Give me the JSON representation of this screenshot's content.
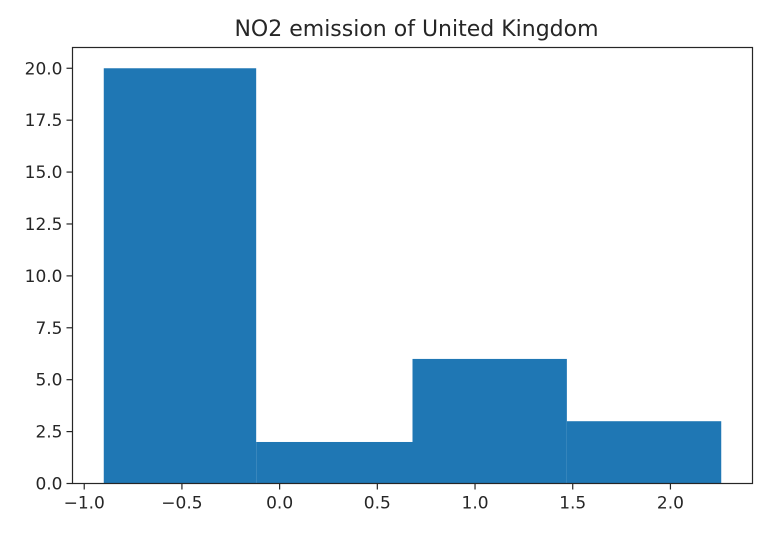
{
  "chart_data": {
    "type": "bar",
    "title": "NO2 emission of United Kingdom",
    "xlabel": "",
    "ylabel": "",
    "bins": [
      {
        "x0": -0.9,
        "x1": -0.12,
        "count": 20
      },
      {
        "x0": -0.12,
        "x1": 0.68,
        "count": 2
      },
      {
        "x0": 0.68,
        "x1": 1.47,
        "count": 6
      },
      {
        "x0": 1.47,
        "x1": 2.26,
        "count": 3
      }
    ],
    "xlim": [
      -1.06,
      2.42
    ],
    "ylim": [
      0,
      21
    ],
    "x_ticks": [
      {
        "value": -1.0,
        "label": "−1.0"
      },
      {
        "value": -0.5,
        "label": "−0.5"
      },
      {
        "value": 0.0,
        "label": "0.0"
      },
      {
        "value": 0.5,
        "label": "0.5"
      },
      {
        "value": 1.0,
        "label": "1.0"
      },
      {
        "value": 1.5,
        "label": "1.5"
      },
      {
        "value": 2.0,
        "label": "2.0"
      }
    ],
    "y_ticks": [
      {
        "value": 0.0,
        "label": "0.0"
      },
      {
        "value": 2.5,
        "label": "2.5"
      },
      {
        "value": 5.0,
        "label": "5.0"
      },
      {
        "value": 7.5,
        "label": "7.5"
      },
      {
        "value": 10.0,
        "label": "10.0"
      },
      {
        "value": 12.5,
        "label": "12.5"
      },
      {
        "value": 15.0,
        "label": "15.0"
      },
      {
        "value": 17.5,
        "label": "17.5"
      },
      {
        "value": 20.0,
        "label": "20.0"
      }
    ],
    "grid": false,
    "bar_color": "#1f77b4",
    "axis_color": "#262626"
  }
}
